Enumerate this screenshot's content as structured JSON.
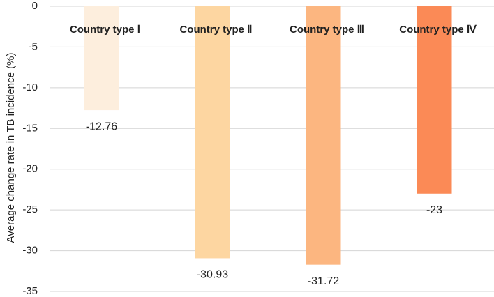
{
  "chart_data": {
    "type": "bar",
    "y_label": "Average change rate in TB incidence (%)",
    "categories": [
      "Country type Ⅰ",
      "Country type Ⅱ",
      "Country type Ⅲ",
      "Country type Ⅳ"
    ],
    "values": [
      -12.76,
      -30.93,
      -31.72,
      -23
    ],
    "colors": [
      "#fdeedd",
      "#fdd6a1",
      "#fcb680",
      "#fb8a56"
    ],
    "ylim": [
      -35,
      0
    ],
    "yticks": [
      0,
      -5,
      -10,
      -15,
      -20,
      -25,
      -30,
      -35
    ],
    "grid": true
  }
}
